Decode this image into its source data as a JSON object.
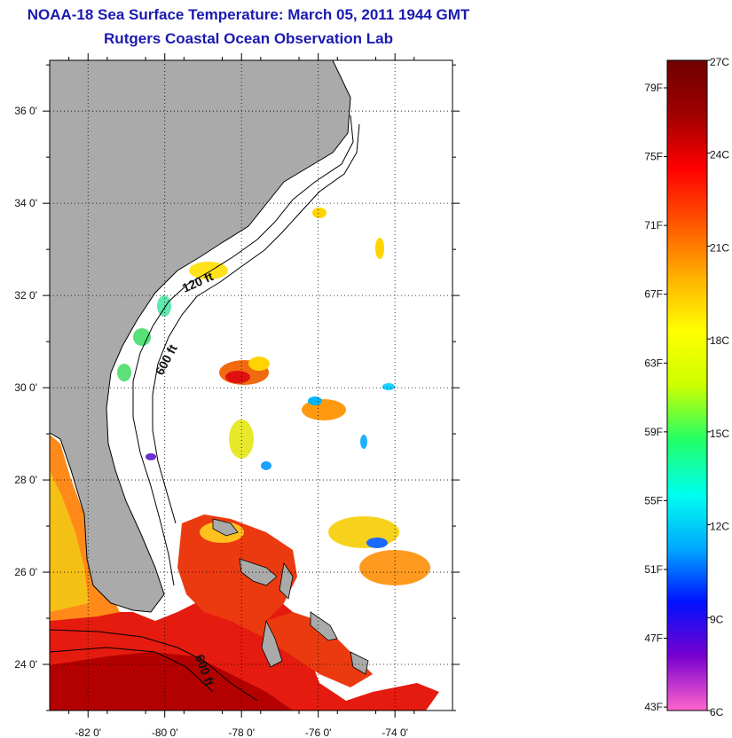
{
  "title": "NOAA-18 Sea Surface Temperature:  March 05, 2011 1944 GMT",
  "subtitle": "Rutgers Coastal Ocean Observation Lab",
  "map": {
    "lon_range": [
      -83,
      -72.5
    ],
    "lat_range": [
      23,
      37.1
    ],
    "lon_ticks": [
      {
        "value": -82,
        "label": "-82 0'"
      },
      {
        "value": -80,
        "label": "-80 0'"
      },
      {
        "value": -78,
        "label": "-78 0'"
      },
      {
        "value": -76,
        "label": "-76 0'"
      },
      {
        "value": -74,
        "label": "-74 0'"
      }
    ],
    "lat_ticks": [
      {
        "value": 36,
        "label": "36 0'"
      },
      {
        "value": 34,
        "label": "34 0'"
      },
      {
        "value": 32,
        "label": "32 0'"
      },
      {
        "value": 30,
        "label": "30 0'"
      },
      {
        "value": 28,
        "label": "28 0'"
      },
      {
        "value": 26,
        "label": "26 0'"
      },
      {
        "value": 24,
        "label": "24 0'"
      }
    ],
    "contour_labels": [
      "120 ft",
      "600 ft",
      "600 ft"
    ],
    "colors": {
      "land": "#aaaaaa",
      "sea_warm": "#e8120a",
      "sea_hot": "#b40000",
      "coast_line": "#000000"
    }
  },
  "colorbar": {
    "celsius_range": [
      6,
      27
    ],
    "fahrenheit_labels": [
      "79F",
      "75F",
      "71F",
      "67F",
      "63F",
      "59F",
      "55F",
      "51F",
      "47F",
      "43F"
    ],
    "celsius_labels": [
      "27C",
      "24C",
      "21C",
      "18C",
      "15C",
      "12C",
      "9C",
      "6C"
    ],
    "colors": [
      "#ff66cc",
      "#7a00d0",
      "#0010ff",
      "#00aaff",
      "#00ffee",
      "#22ff66",
      "#ccff00",
      "#ffff00",
      "#ffb000",
      "#ff5500",
      "#ff0000",
      "#a00000",
      "#700000"
    ]
  }
}
